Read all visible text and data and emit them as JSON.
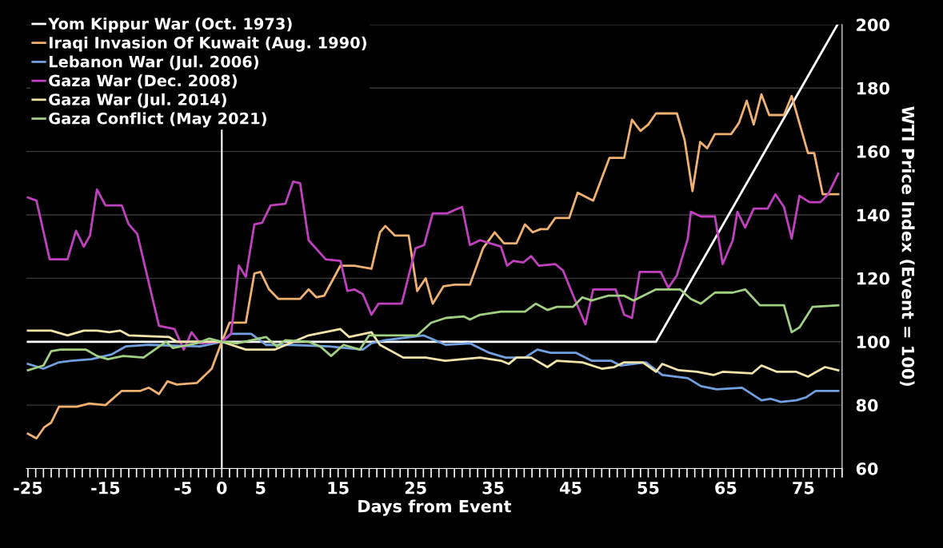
{
  "chart_data": {
    "type": "line",
    "xlabel": "Days from Event",
    "ylabel": "WTI Price Index (Event = 100)",
    "xlim": [
      -25.2,
      80
    ],
    "xticks": [
      -25,
      -15,
      -5,
      0,
      5,
      15,
      25,
      35,
      45,
      55,
      65,
      75
    ],
    "ylim": [
      60,
      200
    ],
    "yticks": [
      60,
      80,
      100,
      120,
      140,
      160,
      180,
      200
    ],
    "grid": "y",
    "legend": "top left",
    "line_style": "solid",
    "marker": "none",
    "ref_lines": [
      {
        "axis": "x",
        "value": 0,
        "color": "#ffffff"
      }
    ],
    "series": [
      {
        "name": "Yom Kippur War (Oct. 1973)",
        "color": "#ffffff",
        "x": [
          -25,
          56,
          79.4
        ],
        "values": [
          100,
          100,
          200
        ]
      },
      {
        "name": "Iraqi Invasion Of Kuwait (Aug. 1990)",
        "color": "#f0b070",
        "x": [
          -25,
          -23.9,
          -22.9,
          -22,
          -21,
          -18.7,
          -17.1,
          -15,
          -12.9,
          -10.5,
          -9.4,
          -8.1,
          -7,
          -5.8,
          -3.2,
          -1.3,
          0,
          1,
          3.1,
          4.2,
          5,
          6.1,
          7.3,
          10.1,
          11.2,
          12.2,
          13.2,
          15.3,
          17.1,
          19.3,
          20.4,
          21.1,
          22.3,
          24.1,
          25.2,
          26.3,
          27.2,
          28.6,
          30,
          32,
          33.7,
          35.2,
          36.4,
          38,
          39.1,
          40.1,
          41.1,
          42,
          43,
          44.8,
          45.9,
          47.9,
          50,
          51.9,
          52.9,
          54,
          55,
          56,
          58.7,
          59.7,
          60.7,
          61.7,
          62.6,
          63.6,
          65.7,
          66.7,
          67.7,
          68.6,
          69.6,
          70.6,
          72.5,
          73.5,
          75.6,
          76.4,
          77.5,
          79.5
        ],
        "values": [
          71,
          69.5,
          73,
          74.5,
          79.5,
          79.5,
          80.5,
          80,
          84.5,
          84.5,
          85.5,
          83.5,
          87.5,
          86.5,
          87,
          91.5,
          100,
          106,
          106,
          121.5,
          122,
          116.5,
          113.5,
          113.5,
          116.5,
          114,
          114.5,
          124,
          124,
          123,
          134.5,
          136.5,
          133.5,
          133.5,
          116,
          120,
          112,
          117.5,
          118,
          118,
          129.5,
          134.5,
          131,
          131,
          137,
          134.5,
          135.5,
          135.5,
          139,
          139,
          147,
          144.5,
          158,
          158,
          170,
          166.5,
          168.5,
          172,
          172,
          163.5,
          147.5,
          163,
          161,
          165.5,
          165.5,
          169,
          176,
          168.5,
          178,
          171.5,
          171.5,
          177.5,
          159.5,
          159.5,
          146.5,
          146.5
        ]
      },
      {
        "name": "Lebanon War (Jul. 2006)",
        "color": "#70a0e0",
        "x": [
          -25,
          -23,
          -21,
          -19.4,
          -16.8,
          -14.2,
          -12.4,
          -9.4,
          -2.8,
          0,
          1.2,
          3.8,
          5.7,
          9,
          13.8,
          18.2,
          19.3,
          21.1,
          26,
          28.9,
          32,
          34.5,
          36.6,
          39.1,
          40.7,
          42.4,
          45.7,
          47.7,
          50.2,
          51.4,
          54.7,
          56.8,
          60.1,
          61.8,
          63.8,
          67.1,
          69.6,
          70.8,
          72.1,
          74.1,
          75.4,
          76.6,
          79.5
        ],
        "values": [
          93,
          91.5,
          93.5,
          94,
          94.5,
          96,
          98.5,
          99,
          98.5,
          100,
          102.5,
          102.5,
          99,
          99,
          98.5,
          97.5,
          99.5,
          100.5,
          102,
          99,
          99.5,
          96.5,
          95,
          95,
          97.5,
          96.5,
          96.5,
          94,
          94,
          92.5,
          93.5,
          89.5,
          88.5,
          86,
          85,
          85.5,
          81.5,
          82,
          81,
          81.5,
          82.5,
          84.5,
          84.5
        ]
      },
      {
        "name": "Gaza War (Dec. 2008)",
        "color": "#c040c0",
        "x": [
          -25,
          -23.9,
          -22.2,
          -19.9,
          -18.8,
          -17.8,
          -17,
          -16.1,
          -15,
          -12.9,
          -12,
          -10.9,
          -8.1,
          -6.1,
          -4.9,
          -3.9,
          -2.8,
          0,
          1.2,
          2.2,
          3.1,
          4.2,
          5.2,
          6.3,
          8.2,
          9.2,
          10.1,
          11.2,
          13.4,
          15.3,
          16.2,
          17.1,
          18.2,
          19.3,
          20.2,
          23.2,
          25,
          26.1,
          27.2,
          29.1,
          30,
          31,
          32,
          33.3,
          36,
          36.8,
          37.6,
          38.9,
          39.9,
          40.9,
          43,
          44,
          45.5,
          46.9,
          47.9,
          50.8,
          51.9,
          52.9,
          53.9,
          56.6,
          57.6,
          58.7,
          60.1,
          60.5,
          61.8,
          63.6,
          64.6,
          65.9,
          66.5,
          67.5,
          68.6,
          70.4,
          71.4,
          72.5,
          73.5,
          74.5,
          75.8,
          77.2,
          78.2,
          79.5
        ],
        "values": [
          145.5,
          144.5,
          126,
          126,
          135,
          130,
          133.5,
          148,
          143,
          143,
          137,
          134,
          105,
          104,
          97.5,
          103,
          99.5,
          100,
          102.5,
          124,
          120.5,
          137,
          137.5,
          143,
          143.5,
          150.5,
          150,
          132,
          126,
          125.5,
          116,
          116.5,
          115,
          108.5,
          112,
          112,
          129.5,
          130.5,
          140.5,
          140.5,
          141.5,
          142.5,
          130.5,
          132,
          130,
          124,
          125.5,
          125,
          127,
          124,
          124.5,
          122.5,
          113.5,
          105.5,
          116.5,
          116.5,
          108.5,
          107.5,
          122,
          122,
          117,
          121,
          132.5,
          141,
          139.5,
          139.5,
          124.5,
          132,
          141,
          136,
          142,
          142,
          146.5,
          142.5,
          132.5,
          146,
          144,
          144,
          146.5,
          153
        ]
      },
      {
        "name": "Gaza War (Jul. 2014)",
        "color": "#f0e4a8",
        "x": [
          -25,
          -22,
          -19.9,
          -17.8,
          -16.1,
          -14.5,
          -13.1,
          -12,
          -6.8,
          -5.8,
          0,
          3.1,
          6.8,
          11.2,
          15.3,
          16.4,
          19.3,
          20.4,
          23.4,
          26.3,
          28.8,
          33.3,
          36,
          37,
          38,
          39.9,
          42,
          43.2,
          46.5,
          49,
          50.6,
          51.9,
          54.3,
          56,
          56.8,
          58.9,
          61.3,
          63.4,
          64.6,
          68.4,
          69.6,
          71.6,
          74.1,
          75.6,
          77.8,
          79.5
        ],
        "values": [
          103.5,
          103.5,
          102,
          103.5,
          103.5,
          103,
          103.5,
          102,
          101.5,
          100,
          100,
          97.5,
          97.5,
          102,
          104,
          101.5,
          103,
          99,
          95,
          95,
          94,
          95,
          94,
          93,
          95,
          95,
          92,
          94,
          93.5,
          91.5,
          92,
          93.5,
          93.5,
          90.5,
          93,
          91,
          90.5,
          89.5,
          90.5,
          90,
          92.5,
          90.5,
          90.5,
          89,
          92,
          91
        ]
      },
      {
        "name": "Gaza Conflict (May 2021)",
        "color": "#a0d080",
        "x": [
          -25,
          -23,
          -22,
          -20.8,
          -17.5,
          -16.1,
          -14.7,
          -12.7,
          -10.1,
          -7.2,
          -6.3,
          -3.2,
          -1.6,
          0,
          2,
          5.7,
          7.1,
          8.2,
          11.2,
          12.7,
          14.1,
          15.7,
          17.8,
          19,
          25.2,
          27,
          28.9,
          31.2,
          32,
          33.3,
          36,
          39.1,
          40.5,
          42,
          43.2,
          45.3,
          46.5,
          47.7,
          49.8,
          51.9,
          53.1,
          56,
          59.1,
          60.5,
          61.8,
          63.6,
          65.9,
          67.5,
          69.4,
          72.5,
          73.5,
          74.5,
          76.2,
          79.5
        ],
        "values": [
          91,
          92.5,
          97,
          97.5,
          97.5,
          95.5,
          94.5,
          95.5,
          95,
          100,
          98,
          99.5,
          101,
          100,
          99.5,
          101.5,
          98.5,
          100.5,
          100,
          98.5,
          95.5,
          99,
          97.5,
          102,
          102,
          106,
          107.5,
          108,
          107,
          108.5,
          109.5,
          109.5,
          112,
          110,
          111,
          111,
          114,
          113,
          114.5,
          114.5,
          113,
          116.5,
          116.5,
          113.5,
          112,
          115.5,
          115.5,
          116.5,
          111.5,
          111.5,
          103,
          104.5,
          111,
          111.5
        ]
      }
    ]
  }
}
